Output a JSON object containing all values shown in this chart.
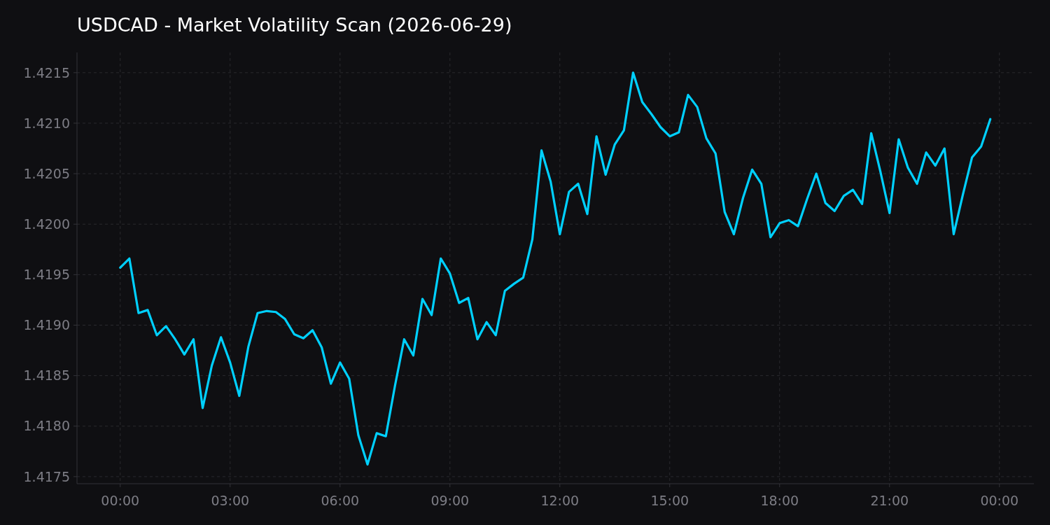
{
  "chart_data": {
    "type": "line",
    "title": "USDCAD - Market Volatility Scan (2026-06-29)",
    "x": [
      0,
      0.25,
      0.5,
      0.75,
      1,
      1.25,
      1.5,
      1.75,
      2,
      2.25,
      2.5,
      2.75,
      3,
      3.25,
      3.5,
      3.75,
      4,
      4.25,
      4.5,
      4.75,
      5,
      5.25,
      5.5,
      5.75,
      6,
      6.25,
      6.5,
      6.75,
      7,
      7.25,
      7.5,
      7.75,
      8,
      8.25,
      8.5,
      8.75,
      9,
      9.25,
      9.5,
      9.75,
      10,
      10.25,
      10.5,
      10.75,
      11,
      11.25,
      11.5,
      11.75,
      12,
      12.25,
      12.5,
      12.75,
      13,
      13.25,
      13.5,
      13.75,
      14,
      14.25,
      14.5,
      14.75,
      15,
      15.25,
      15.5,
      15.75,
      16,
      16.25,
      16.5,
      16.75,
      17,
      17.25,
      17.5,
      17.75,
      18,
      18.25,
      18.5,
      18.75,
      19,
      19.25,
      19.5,
      19.75,
      20,
      20.25,
      20.5,
      20.75,
      21,
      21.25,
      21.5,
      21.75,
      22,
      22.25,
      22.5,
      22.75,
      23,
      23.25,
      23.5,
      23.75
    ],
    "series": [
      {
        "color": "#00d0ff",
        "values": [
          1.41957,
          1.41966,
          1.41912,
          1.41915,
          1.4189,
          1.41899,
          1.41886,
          1.41871,
          1.41886,
          1.41818,
          1.4186,
          1.41888,
          1.41863,
          1.4183,
          1.41879,
          1.41912,
          1.41914,
          1.41913,
          1.41906,
          1.41891,
          1.41887,
          1.41895,
          1.41878,
          1.41842,
          1.41863,
          1.41847,
          1.41791,
          1.41762,
          1.41793,
          1.4179,
          1.4184,
          1.41886,
          1.4187,
          1.41926,
          1.4191,
          1.41966,
          1.41951,
          1.41922,
          1.41927,
          1.41886,
          1.41903,
          1.4189,
          1.41934,
          1.41941,
          1.41947,
          1.41985,
          1.42073,
          1.42042,
          1.4199,
          1.42032,
          1.4204,
          1.4201,
          1.42087,
          1.42049,
          1.42079,
          1.42093,
          1.4215,
          1.42121,
          1.42109,
          1.42096,
          1.42087,
          1.42091,
          1.42128,
          1.42116,
          1.42085,
          1.4207,
          1.42012,
          1.4199,
          1.42026,
          1.42054,
          1.4204,
          1.41987,
          1.42001,
          1.42004,
          1.41998,
          1.42025,
          1.4205,
          1.42021,
          1.42013,
          1.42028,
          1.42034,
          1.4202,
          1.4209,
          1.42052,
          1.42011,
          1.42084,
          1.42056,
          1.4204,
          1.42071,
          1.42058,
          1.42075,
          1.4199,
          1.42029,
          1.42066,
          1.42077,
          1.42104
        ]
      }
    ],
    "xlim": [
      -1.18,
      24.94
    ],
    "xticks": [
      {
        "value": 0,
        "label": "00:00"
      },
      {
        "value": 3,
        "label": "03:00"
      },
      {
        "value": 6,
        "label": "06:00"
      },
      {
        "value": 9,
        "label": "09:00"
      },
      {
        "value": 12,
        "label": "12:00"
      },
      {
        "value": 15,
        "label": "15:00"
      },
      {
        "value": 18,
        "label": "18:00"
      },
      {
        "value": 21,
        "label": "21:00"
      },
      {
        "value": 24,
        "label": "00:00"
      }
    ],
    "ylim": [
      1.41743,
      1.4217
    ],
    "yticks": [
      {
        "value": 1.4175,
        "label": "1.4175"
      },
      {
        "value": 1.418,
        "label": "1.4180"
      },
      {
        "value": 1.4185,
        "label": "1.4185"
      },
      {
        "value": 1.419,
        "label": "1.4190"
      },
      {
        "value": 1.4195,
        "label": "1.4195"
      },
      {
        "value": 1.42,
        "label": "1.4200"
      },
      {
        "value": 1.4205,
        "label": "1.4205"
      },
      {
        "value": 1.421,
        "label": "1.4210"
      },
      {
        "value": 1.4215,
        "label": "1.4215"
      }
    ],
    "grid": true,
    "marker": "none",
    "line_style": "solid"
  }
}
